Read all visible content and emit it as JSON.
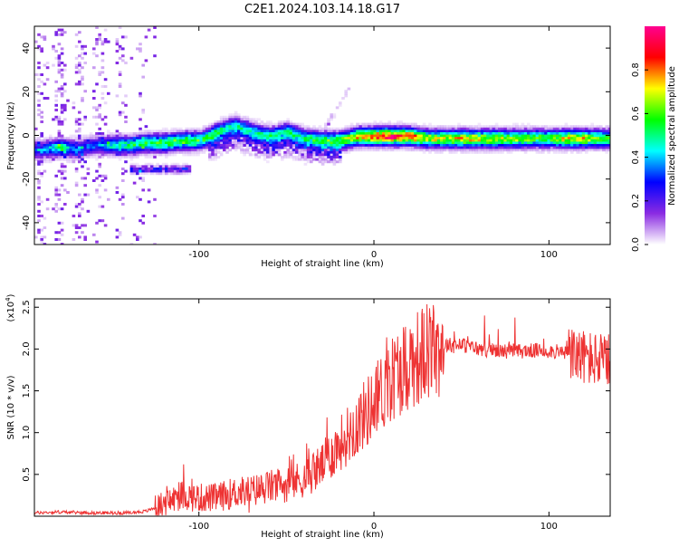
{
  "title": "C2E1.2024.103.14.18.G17",
  "chart_data": [
    {
      "type": "heatmap",
      "xlabel": "Height of straight line (km)",
      "ylabel": "Frequency (Hz)",
      "xlim": [
        -194,
        135
      ],
      "ylim": [
        -50,
        50
      ],
      "xticks": [
        -100,
        0,
        100
      ],
      "xtick_labels": [
        "-100",
        "0",
        "100"
      ],
      "yticks": [
        -40,
        -20,
        0,
        20,
        40
      ],
      "ytick_labels": [
        "-40",
        "-20",
        "0",
        "20",
        "40"
      ],
      "colorbar": {
        "label": "Normalized spectral amplitude",
        "range": [
          0,
          1
        ],
        "ticks": [
          0.0,
          0.2,
          0.4,
          0.6,
          0.8
        ],
        "tick_labels": [
          "0.0",
          "0.2",
          "0.4",
          "0.6",
          "0.8"
        ],
        "colormap": [
          "#ffffff",
          "#8a2be2",
          "#0000ff",
          "#00ffff",
          "#00ff00",
          "#ffff00",
          "#ff0000",
          "#ff0090"
        ]
      },
      "ridge": [
        {
          "x": -190,
          "y": -6,
          "amp": 0.3
        },
        {
          "x": -180,
          "y": -5,
          "amp": 0.5
        },
        {
          "x": -170,
          "y": -6,
          "amp": 0.3
        },
        {
          "x": -160,
          "y": -4,
          "amp": 0.3
        },
        {
          "x": -150,
          "y": -4,
          "amp": 0.45
        },
        {
          "x": -140,
          "y": -4,
          "amp": 0.5
        },
        {
          "x": -130,
          "y": -3,
          "amp": 0.55
        },
        {
          "x": -120,
          "y": -3,
          "amp": 0.6
        },
        {
          "x": -110,
          "y": -2,
          "amp": 0.6
        },
        {
          "x": -100,
          "y": -2,
          "amp": 0.55
        },
        {
          "x": -90,
          "y": 2,
          "amp": 0.5
        },
        {
          "x": -80,
          "y": 5,
          "amp": 0.45
        },
        {
          "x": -70,
          "y": 2,
          "amp": 0.45
        },
        {
          "x": -60,
          "y": 0,
          "amp": 0.5
        },
        {
          "x": -50,
          "y": 2,
          "amp": 0.5
        },
        {
          "x": -40,
          "y": -1,
          "amp": 0.5
        },
        {
          "x": -30,
          "y": -2,
          "amp": 0.55
        },
        {
          "x": -20,
          "y": -2,
          "amp": 0.6
        },
        {
          "x": -10,
          "y": 0,
          "amp": 0.75
        },
        {
          "x": 0,
          "y": 0,
          "amp": 0.85
        },
        {
          "x": 10,
          "y": 0,
          "amp": 0.95
        },
        {
          "x": 20,
          "y": 0,
          "amp": 0.85
        },
        {
          "x": 30,
          "y": -1,
          "amp": 0.7
        },
        {
          "x": 40,
          "y": -1,
          "amp": 0.7
        },
        {
          "x": 50,
          "y": -1,
          "amp": 0.75
        },
        {
          "x": 60,
          "y": -1,
          "amp": 0.7
        },
        {
          "x": 70,
          "y": -1,
          "amp": 0.7
        },
        {
          "x": 80,
          "y": -1,
          "amp": 0.65
        },
        {
          "x": 90,
          "y": -1,
          "amp": 0.6
        },
        {
          "x": 100,
          "y": -1,
          "amp": 0.6
        },
        {
          "x": 110,
          "y": -1,
          "amp": 0.75
        },
        {
          "x": 120,
          "y": -1,
          "amp": 0.7
        },
        {
          "x": 130,
          "y": -1,
          "amp": 0.6
        }
      ]
    },
    {
      "type": "line",
      "xlabel": "Height of straight line (km)",
      "ylabel": "SNR (10 * v/v)",
      "y_multiplier": "(x10",
      "y_multiplier_exp": "4",
      "y_multiplier_close": ")",
      "xlim": [
        -194,
        135
      ],
      "ylim": [
        0,
        2.6
      ],
      "xticks": [
        -100,
        0,
        100
      ],
      "xtick_labels": [
        "-100",
        "0",
        "100"
      ],
      "yticks": [
        0.5,
        1.0,
        1.5,
        2.0,
        2.5
      ],
      "ytick_labels": [
        "0.5",
        "1.0",
        "1.5",
        "2.0",
        "2.5"
      ],
      "color": "#ee3333",
      "series": [
        {
          "x": [
            -194,
            -180,
            -160,
            -140,
            -130,
            -120,
            -110,
            -100,
            -90,
            -80,
            -70,
            -60,
            -50,
            -40,
            -30,
            -20,
            -10,
            0,
            10,
            20,
            30,
            40,
            50,
            60,
            70,
            80,
            90,
            100,
            110,
            120,
            130,
            135
          ],
          "y": [
            0.04,
            0.05,
            0.04,
            0.04,
            0.06,
            0.15,
            0.25,
            0.22,
            0.22,
            0.28,
            0.3,
            0.35,
            0.38,
            0.45,
            0.6,
            0.85,
            1.1,
            1.35,
            1.65,
            1.85,
            1.95,
            2.05,
            2.05,
            2.0,
            1.98,
            1.97,
            1.98,
            1.98,
            1.95,
            1.9,
            1.85,
            1.85
          ]
        }
      ]
    }
  ]
}
